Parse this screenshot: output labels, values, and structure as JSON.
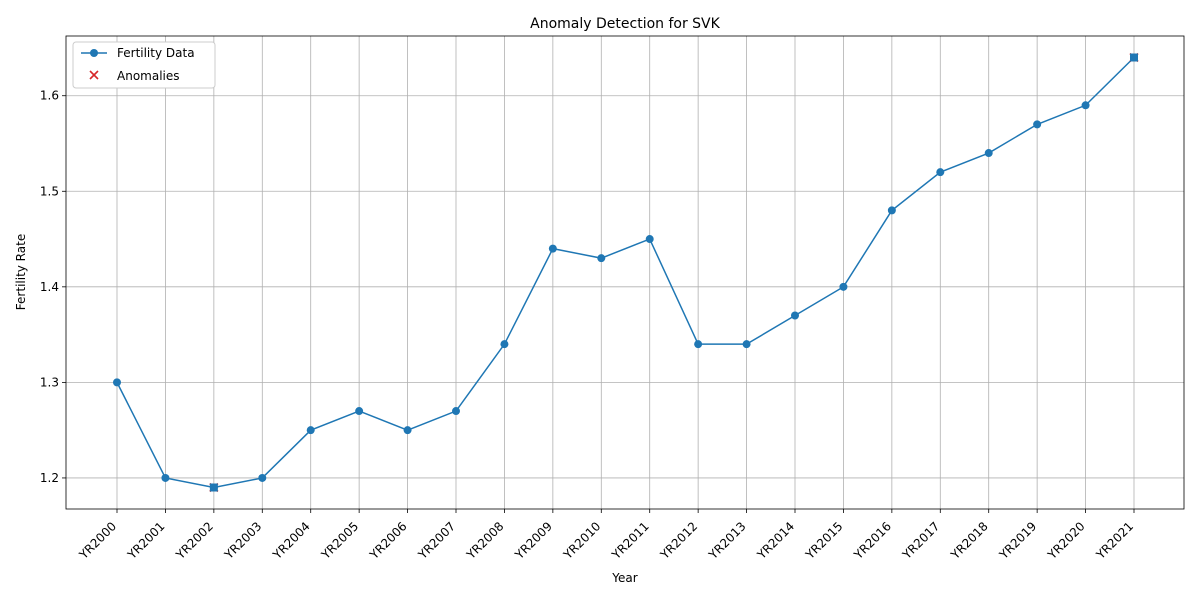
{
  "chart_data": {
    "type": "line",
    "title": "Anomaly Detection for SVK",
    "xlabel": "Year",
    "ylabel": "Fertility Rate",
    "categories": [
      "YR2000",
      "YR2001",
      "YR2002",
      "YR2003",
      "YR2004",
      "YR2005",
      "YR2006",
      "YR2007",
      "YR2008",
      "YR2009",
      "YR2010",
      "YR2011",
      "YR2012",
      "YR2013",
      "YR2014",
      "YR2015",
      "YR2016",
      "YR2017",
      "YR2018",
      "YR2019",
      "YR2020",
      "YR2021"
    ],
    "series": [
      {
        "name": "Fertility Data",
        "color": "#1f77b4",
        "values": [
          1.3,
          1.2,
          1.19,
          1.2,
          1.25,
          1.27,
          1.25,
          1.27,
          1.34,
          1.44,
          1.43,
          1.45,
          1.34,
          1.34,
          1.37,
          1.4,
          1.48,
          1.52,
          1.54,
          1.57,
          1.59,
          1.64
        ]
      }
    ],
    "anomalies": {
      "name": "Anomalies",
      "color": "#d62728",
      "categories": [
        "YR2002",
        "YR2021"
      ],
      "values": [
        1.19,
        1.64
      ]
    },
    "yticks": [
      1.2,
      1.3,
      1.4,
      1.5,
      1.6
    ],
    "ylim": [
      1.1675,
      1.6625
    ],
    "grid": true,
    "legend": "top-left"
  }
}
